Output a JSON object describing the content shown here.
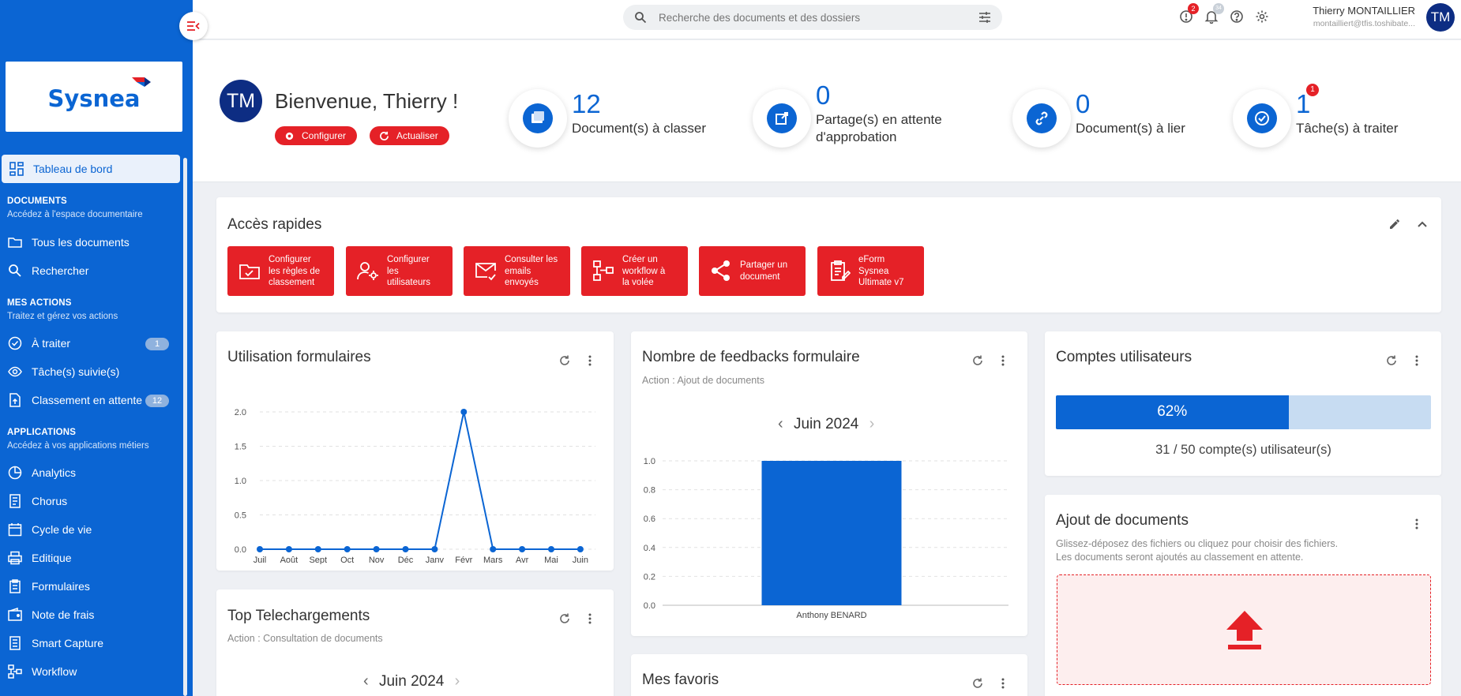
{
  "sidebar": {
    "logo": "Sysnea",
    "items_top": [
      {
        "label": "Tableau de bord"
      }
    ],
    "sections": {
      "documents": {
        "title": "DOCUMENTS",
        "sub": "Accédez à l'espace documentaire"
      },
      "actions": {
        "title": "MES ACTIONS",
        "sub": "Traitez et gérez vos actions"
      },
      "apps": {
        "title": "APPLICATIONS",
        "sub": "Accédez à vos applications métiers"
      }
    },
    "doc_items": [
      {
        "label": "Tous les documents"
      },
      {
        "label": "Rechercher"
      }
    ],
    "action_items": [
      {
        "label": "À traiter",
        "badge": "1"
      },
      {
        "label": "Tâche(s) suivie(s)"
      },
      {
        "label": "Classement en attente",
        "badge": "12"
      }
    ],
    "app_items": [
      {
        "label": "Analytics"
      },
      {
        "label": "Chorus"
      },
      {
        "label": "Cycle de vie"
      },
      {
        "label": "Editique"
      },
      {
        "label": "Formulaires"
      },
      {
        "label": "Note de frais"
      },
      {
        "label": "Smart Capture"
      },
      {
        "label": "Workflow"
      }
    ]
  },
  "topbar": {
    "search_placeholder": "Recherche des documents et des dossiers",
    "alert_badge": "2",
    "notif_badge": "34",
    "user_name": "Thierry MONTAILLIER",
    "user_email": "montailliert@tfis.toshibate...",
    "user_initials": "TM"
  },
  "header": {
    "initials": "TM",
    "welcome": "Bienvenue, Thierry !",
    "configure_label": "Configurer",
    "refresh_label": "Actualiser",
    "stats": [
      {
        "value": "12",
        "label": "Document(s) à classer"
      },
      {
        "value": "0",
        "label_line1": "Partage(s) en attente",
        "label_line2": "d'approbation"
      },
      {
        "value": "0",
        "label": "Document(s) à lier"
      },
      {
        "value": "1",
        "label": "Tâche(s) à traiter",
        "badge": "1"
      }
    ]
  },
  "quick_access": {
    "title": "Accès rapides",
    "buttons": [
      {
        "l1": "Configurer",
        "l2": "les règles de",
        "l3": "classement"
      },
      {
        "l1": "Configurer",
        "l2": "les",
        "l3": "utilisateurs"
      },
      {
        "l1": "Consulter les",
        "l2": "emails",
        "l3": "envoyés"
      },
      {
        "l1": "Créer un",
        "l2": "workflow à",
        "l3": "la volée"
      },
      {
        "l1": "Partager un",
        "l2": "document",
        "l3": ""
      },
      {
        "l1": "eForm",
        "l2": "Sysnea",
        "l3": "Ultimate v7"
      }
    ]
  },
  "forms_usage": {
    "title": "Utilisation formulaires",
    "chart_data": {
      "type": "line",
      "x": [
        "Juil",
        "Août",
        "Sept",
        "Oct",
        "Nov",
        "Déc",
        "Janv",
        "Févr",
        "Mars",
        "Avr",
        "Mai",
        "Juin"
      ],
      "values": [
        0,
        0,
        0,
        0,
        0,
        0,
        0,
        2,
        0,
        0,
        0,
        0
      ],
      "yticks": [
        "0.0",
        "0.5",
        "1.0",
        "1.5",
        "2.0"
      ],
      "ylim": [
        0,
        2
      ],
      "color": "#0b65d3",
      "grid": true
    }
  },
  "feedbacks": {
    "title": "Nombre de feedbacks formulaire",
    "subtitle": "Action : Ajout de documents",
    "month": "Juin 2024",
    "chart_data": {
      "type": "bar",
      "categories": [
        "Anthony BENARD"
      ],
      "values": [
        1.0
      ],
      "yticks": [
        "0.0",
        "0.2",
        "0.4",
        "0.6",
        "0.8",
        "1.0"
      ],
      "ylim": [
        0,
        1
      ],
      "color": "#0b65d3",
      "grid": true
    }
  },
  "accounts": {
    "title": "Comptes utilisateurs",
    "percent_label": "62%",
    "percent": 62,
    "summary": "31 / 50 compte(s) utilisateur(s)"
  },
  "upload": {
    "title": "Ajout de documents",
    "line1": "Glissez-déposez des fichiers ou cliquez pour choisir des fichiers.",
    "line2": "Les documents seront ajoutés au classement en attente."
  },
  "top_downloads": {
    "title": "Top Telechargements",
    "subtitle": "Action : Consultation de documents",
    "month": "Juin 2024"
  },
  "favorites": {
    "title": "Mes favoris"
  },
  "colors": {
    "primary": "#0b65d3",
    "accent": "#e52127",
    "navy": "#0d2d83"
  }
}
